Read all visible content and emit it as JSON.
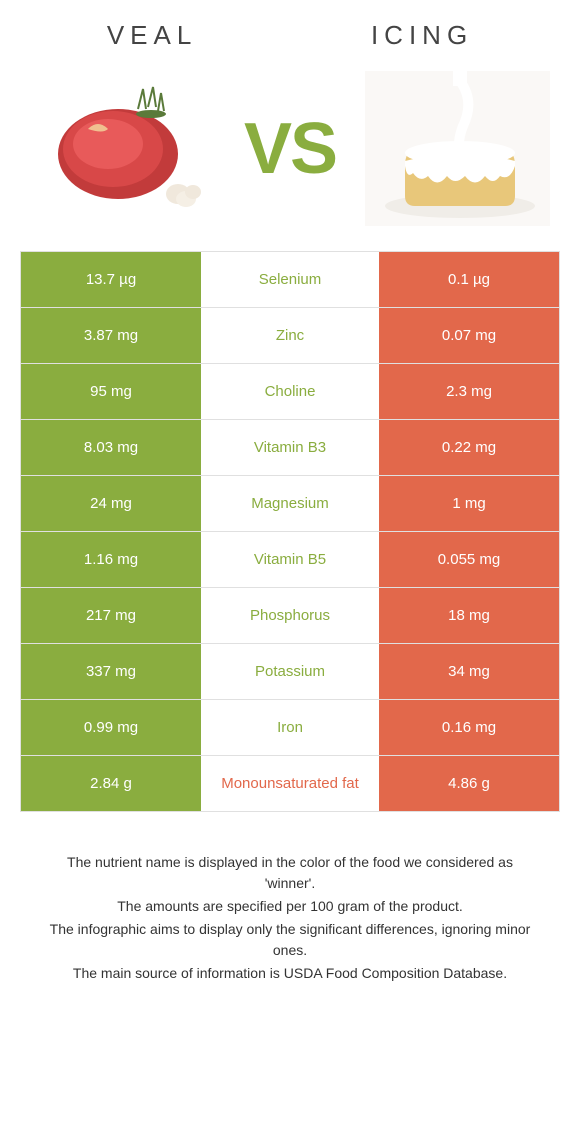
{
  "header": {
    "left_title": "VEAL",
    "right_title": "ICING",
    "vs_label": "VS"
  },
  "colors": {
    "green": "#8aad3f",
    "orange": "#e2684b",
    "border": "#e0e0e0",
    "text": "#333333",
    "white": "#ffffff"
  },
  "table": {
    "rows": [
      {
        "nutrient": "Selenium",
        "left": "13.7 µg",
        "right": "0.1 µg",
        "winner": "left"
      },
      {
        "nutrient": "Zinc",
        "left": "3.87 mg",
        "right": "0.07 mg",
        "winner": "left"
      },
      {
        "nutrient": "Choline",
        "left": "95 mg",
        "right": "2.3 mg",
        "winner": "left"
      },
      {
        "nutrient": "Vitamin B3",
        "left": "8.03 mg",
        "right": "0.22 mg",
        "winner": "left"
      },
      {
        "nutrient": "Magnesium",
        "left": "24 mg",
        "right": "1 mg",
        "winner": "left"
      },
      {
        "nutrient": "Vitamin B5",
        "left": "1.16 mg",
        "right": "0.055 mg",
        "winner": "left"
      },
      {
        "nutrient": "Phosphorus",
        "left": "217 mg",
        "right": "18 mg",
        "winner": "left"
      },
      {
        "nutrient": "Potassium",
        "left": "337 mg",
        "right": "34 mg",
        "winner": "left"
      },
      {
        "nutrient": "Iron",
        "left": "0.99 mg",
        "right": "0.16 mg",
        "winner": "left"
      },
      {
        "nutrient": "Monounsaturated fat",
        "left": "2.84 g",
        "right": "4.86 g",
        "winner": "right"
      }
    ]
  },
  "footnotes": [
    "The nutrient name is displayed in the color of the food we considered as 'winner'.",
    "The amounts are specified per 100 gram of the product.",
    "The infographic aims to display only the significant differences, ignoring minor ones.",
    "The main source of information is USDA Food Composition Database."
  ]
}
